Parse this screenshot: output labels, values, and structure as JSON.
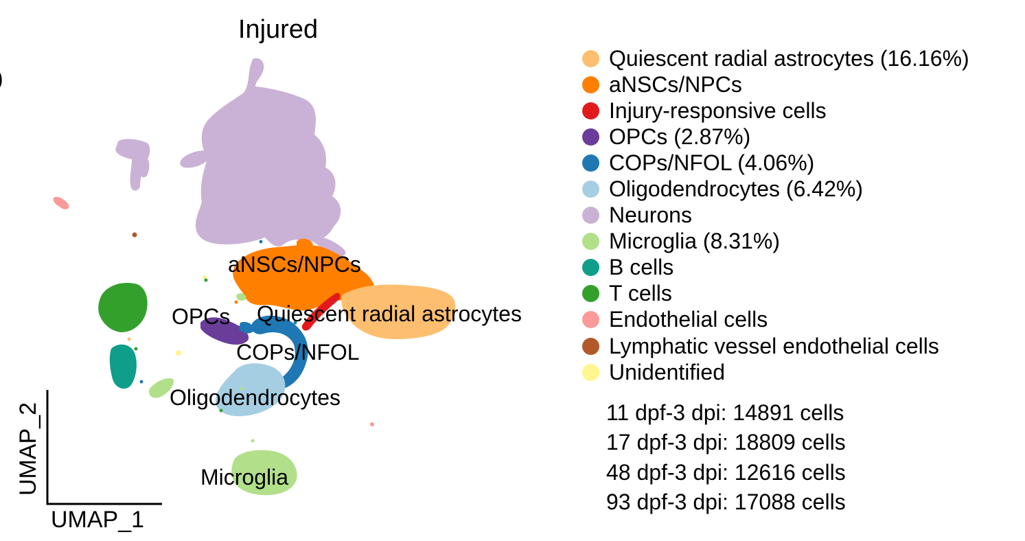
{
  "chart_data": {
    "type": "scatter",
    "title": "Injured",
    "edge_text": ")",
    "xlabel": "UMAP_1",
    "ylabel": "UMAP_2",
    "legend_placement": "right",
    "grid": false,
    "series": [
      {
        "name": "Quiescent radial astrocytes (16.16%)",
        "color": "#FDBF6F",
        "cluster_label": "Quiescent radial astrocytes"
      },
      {
        "name": "aNSCs/NPCs",
        "color": "#FF7F00",
        "cluster_label": "aNSCs/NPCs"
      },
      {
        "name": "Injury-responsive cells",
        "color": "#E31A1C",
        "cluster_label": ""
      },
      {
        "name": "OPCs (2.87%)",
        "color": "#6A3D9A",
        "cluster_label": "OPCs"
      },
      {
        "name": "COPs/NFOL (4.06%)",
        "color": "#1F78B4",
        "cluster_label": "COPs/NFOL"
      },
      {
        "name": "Oligodendrocytes (6.42%)",
        "color": "#A6CEE3",
        "cluster_label": "Oligodendrocytes"
      },
      {
        "name": "Neurons",
        "color": "#CAB2D6",
        "cluster_label": ""
      },
      {
        "name": "Microglia (8.31%)",
        "color": "#B2DF8A",
        "cluster_label": "Microglia"
      },
      {
        "name": "B cells",
        "color": "#0E9E8A",
        "cluster_label": ""
      },
      {
        "name": "T cells",
        "color": "#33A02C",
        "cluster_label": ""
      },
      {
        "name": "Endothelial cells",
        "color": "#FB9A99",
        "cluster_label": ""
      },
      {
        "name": "Lymphatic vessel endothelial cells",
        "color": "#B15928",
        "cluster_label": ""
      },
      {
        "name": "Unidentified",
        "color": "#FFF68F",
        "cluster_label": ""
      }
    ],
    "sample_counts": [
      "11 dpf-3 dpi: 14891 cells",
      "17 dpf-3 dpi: 18809 cells",
      "48 dpf-3 dpi: 12616 cells",
      "93 dpf-3 dpi: 17088 cells"
    ]
  }
}
